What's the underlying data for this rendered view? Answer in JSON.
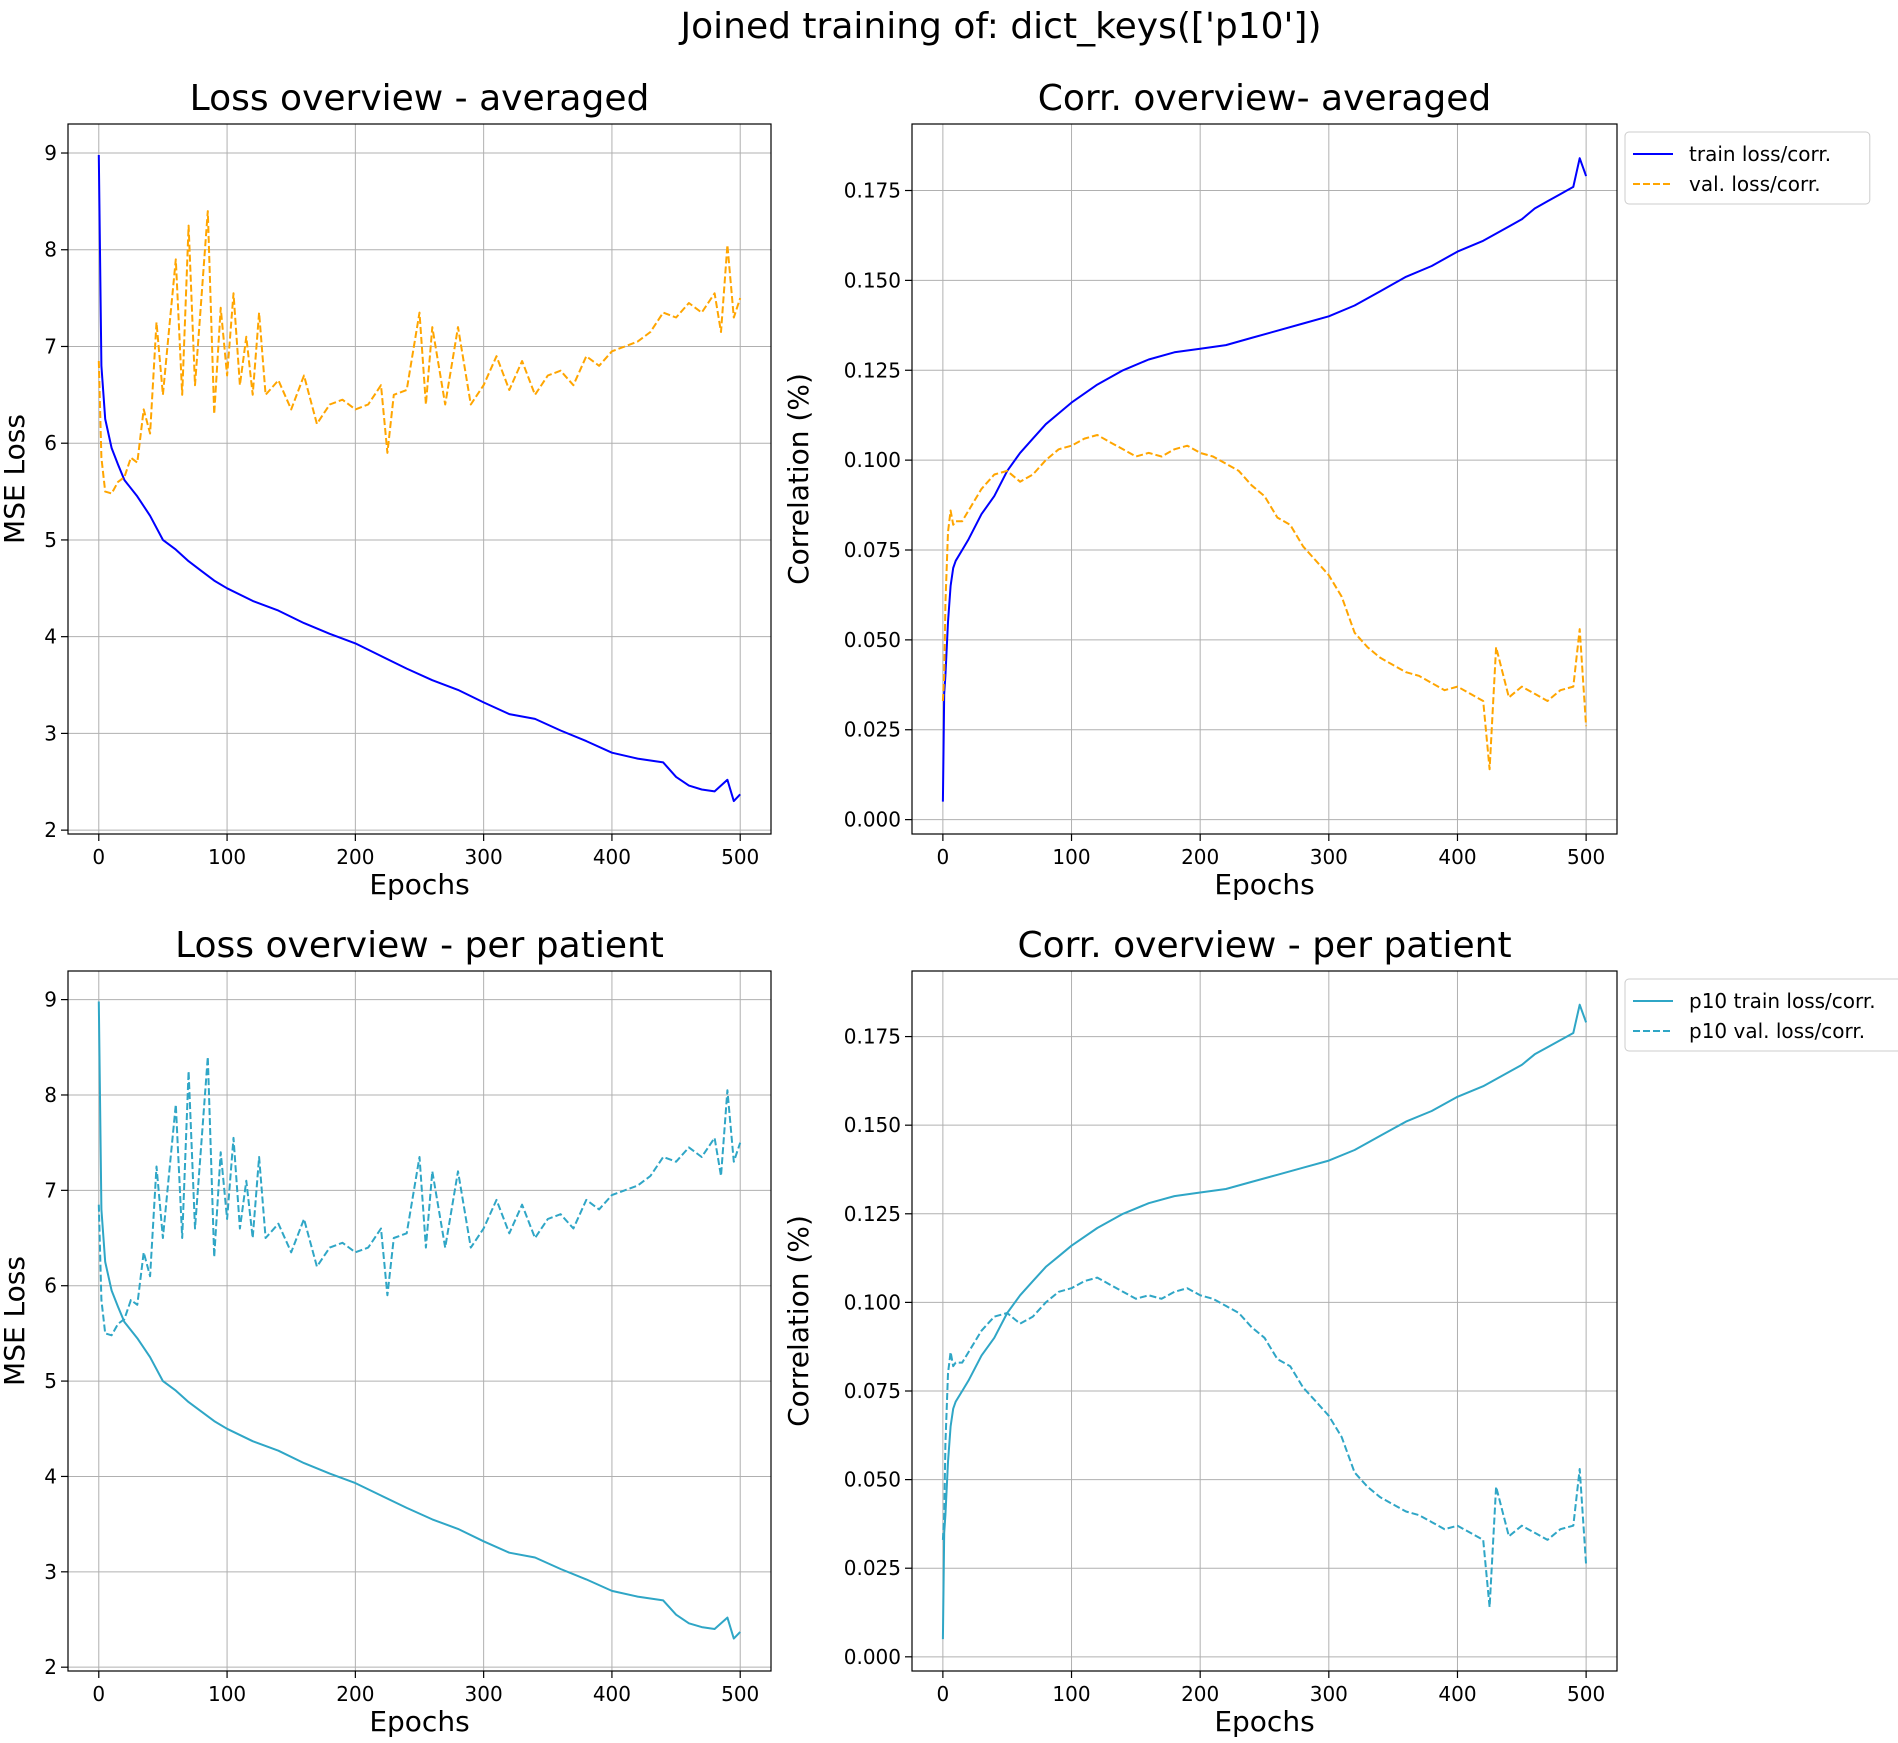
{
  "figure": {
    "suptitle": "Joined training of: dict_keys(['p10'])"
  },
  "chart_data": [
    {
      "id": "loss_avg",
      "type": "line",
      "title": "Loss overview - averaged",
      "xlabel": "Epochs",
      "ylabel": "MSE Loss",
      "xlim": [
        -24,
        524
      ],
      "ylim": [
        1.96,
        9.3
      ],
      "xticks": [
        0,
        100,
        200,
        300,
        400,
        500
      ],
      "yticks": [
        2,
        3,
        4,
        5,
        6,
        7,
        8,
        9
      ],
      "ytick_decimals": 0,
      "grid": true,
      "legend": null,
      "series": [
        {
          "role": "train",
          "color": "#0000ff",
          "style": "solid",
          "x": [
            0,
            2,
            5,
            10,
            15,
            20,
            30,
            40,
            50,
            60,
            70,
            80,
            90,
            100,
            120,
            140,
            160,
            180,
            200,
            220,
            240,
            260,
            280,
            300,
            320,
            340,
            360,
            380,
            400,
            420,
            440,
            450,
            460,
            470,
            480,
            490,
            495,
            500
          ],
          "y": [
            8.98,
            6.8,
            6.25,
            5.95,
            5.78,
            5.62,
            5.45,
            5.25,
            5.0,
            4.9,
            4.78,
            4.68,
            4.58,
            4.5,
            4.37,
            4.27,
            4.14,
            4.03,
            3.93,
            3.8,
            3.67,
            3.55,
            3.45,
            3.32,
            3.2,
            3.15,
            3.03,
            2.92,
            2.8,
            2.74,
            2.7,
            2.55,
            2.46,
            2.42,
            2.4,
            2.52,
            2.3,
            2.37
          ]
        },
        {
          "role": "val",
          "color": "#ffa500",
          "style": "dashed",
          "x": [
            0,
            2,
            5,
            10,
            15,
            20,
            25,
            30,
            35,
            40,
            45,
            50,
            55,
            60,
            65,
            70,
            75,
            80,
            85,
            90,
            95,
            100,
            105,
            110,
            115,
            120,
            125,
            130,
            140,
            150,
            160,
            170,
            180,
            190,
            200,
            210,
            220,
            225,
            230,
            240,
            250,
            255,
            260,
            270,
            280,
            290,
            300,
            310,
            320,
            330,
            340,
            350,
            360,
            370,
            380,
            390,
            400,
            410,
            420,
            430,
            440,
            450,
            460,
            470,
            480,
            485,
            490,
            495,
            500
          ],
          "y": [
            6.85,
            5.85,
            5.5,
            5.48,
            5.6,
            5.65,
            5.85,
            5.8,
            6.35,
            6.1,
            7.25,
            6.5,
            7.2,
            7.9,
            6.5,
            8.25,
            6.6,
            7.5,
            8.4,
            6.3,
            7.4,
            6.7,
            7.55,
            6.6,
            7.1,
            6.5,
            7.35,
            6.5,
            6.65,
            6.35,
            6.7,
            6.2,
            6.4,
            6.45,
            6.35,
            6.4,
            6.6,
            5.9,
            6.5,
            6.55,
            7.35,
            6.4,
            7.2,
            6.4,
            7.2,
            6.4,
            6.6,
            6.9,
            6.55,
            6.85,
            6.5,
            6.7,
            6.75,
            6.6,
            6.9,
            6.8,
            6.95,
            7.0,
            7.05,
            7.15,
            7.35,
            7.3,
            7.45,
            7.35,
            7.55,
            7.15,
            8.05,
            7.3,
            7.5
          ]
        }
      ]
    },
    {
      "id": "corr_avg",
      "type": "line",
      "title": "Corr. overview- averaged",
      "xlabel": "Epochs",
      "ylabel": "Correlation (%)",
      "xlim": [
        -24,
        524
      ],
      "ylim": [
        -0.004,
        0.1935
      ],
      "xticks": [
        0,
        100,
        200,
        300,
        400,
        500
      ],
      "yticks": [
        0.0,
        0.025,
        0.05,
        0.075,
        0.1,
        0.125,
        0.15,
        0.175
      ],
      "ytick_decimals": 3,
      "grid": true,
      "legend": {
        "placement": "outside upper right",
        "entries": [
          "train loss/corr.",
          "val. loss/corr."
        ]
      },
      "series": [
        {
          "role": "train",
          "color": "#0000ff",
          "style": "solid",
          "name": "train loss/corr.",
          "x": [
            0,
            1,
            2,
            4,
            6,
            8,
            10,
            15,
            20,
            30,
            40,
            50,
            60,
            70,
            80,
            90,
            100,
            120,
            140,
            160,
            180,
            200,
            220,
            240,
            260,
            280,
            300,
            320,
            340,
            360,
            380,
            400,
            420,
            440,
            450,
            460,
            470,
            480,
            485,
            490,
            495,
            500
          ],
          "y": [
            0.005,
            0.035,
            0.04,
            0.055,
            0.065,
            0.07,
            0.072,
            0.075,
            0.078,
            0.085,
            0.09,
            0.097,
            0.102,
            0.106,
            0.11,
            0.113,
            0.116,
            0.121,
            0.125,
            0.128,
            0.13,
            0.131,
            0.132,
            0.134,
            0.136,
            0.138,
            0.14,
            0.143,
            0.147,
            0.151,
            0.154,
            0.158,
            0.161,
            0.165,
            0.167,
            0.17,
            0.172,
            0.174,
            0.175,
            0.176,
            0.184,
            0.179
          ]
        },
        {
          "role": "val",
          "color": "#ffa500",
          "style": "dashed",
          "name": "val. loss/corr.",
          "x": [
            0,
            1,
            2,
            4,
            6,
            8,
            10,
            15,
            20,
            30,
            40,
            50,
            60,
            70,
            80,
            90,
            100,
            110,
            120,
            130,
            140,
            150,
            160,
            170,
            180,
            190,
            200,
            210,
            220,
            230,
            240,
            250,
            260,
            270,
            280,
            290,
            300,
            310,
            320,
            330,
            340,
            350,
            360,
            370,
            380,
            390,
            400,
            410,
            420,
            425,
            430,
            440,
            450,
            460,
            470,
            480,
            490,
            495,
            500
          ],
          "y": [
            0.033,
            0.04,
            0.06,
            0.08,
            0.086,
            0.082,
            0.083,
            0.083,
            0.086,
            0.092,
            0.096,
            0.097,
            0.094,
            0.096,
            0.1,
            0.103,
            0.104,
            0.106,
            0.107,
            0.105,
            0.103,
            0.101,
            0.102,
            0.101,
            0.103,
            0.104,
            0.102,
            0.101,
            0.099,
            0.097,
            0.093,
            0.09,
            0.084,
            0.082,
            0.076,
            0.072,
            0.068,
            0.062,
            0.052,
            0.048,
            0.045,
            0.043,
            0.041,
            0.04,
            0.038,
            0.036,
            0.037,
            0.035,
            0.033,
            0.014,
            0.048,
            0.034,
            0.037,
            0.035,
            0.033,
            0.036,
            0.037,
            0.053,
            0.026
          ]
        }
      ]
    },
    {
      "id": "loss_pat",
      "type": "line",
      "title": "Loss overview - per patient",
      "xlabel": "Epochs",
      "ylabel": "MSE Loss",
      "xlim": [
        -24,
        524
      ],
      "ylim": [
        1.96,
        9.3
      ],
      "xticks": [
        0,
        100,
        200,
        300,
        400,
        500
      ],
      "yticks": [
        2,
        3,
        4,
        5,
        6,
        7,
        8,
        9
      ],
      "ytick_decimals": 0,
      "grid": true,
      "legend": null,
      "series": [
        {
          "role": "train",
          "color": "#2fa6c6",
          "style": "solid",
          "x": [
            0,
            2,
            5,
            10,
            15,
            20,
            30,
            40,
            50,
            60,
            70,
            80,
            90,
            100,
            120,
            140,
            160,
            180,
            200,
            220,
            240,
            260,
            280,
            300,
            320,
            340,
            360,
            380,
            400,
            420,
            440,
            450,
            460,
            470,
            480,
            490,
            495,
            500
          ],
          "y": [
            8.98,
            6.8,
            6.25,
            5.95,
            5.78,
            5.62,
            5.45,
            5.25,
            5.0,
            4.9,
            4.78,
            4.68,
            4.58,
            4.5,
            4.37,
            4.27,
            4.14,
            4.03,
            3.93,
            3.8,
            3.67,
            3.55,
            3.45,
            3.32,
            3.2,
            3.15,
            3.03,
            2.92,
            2.8,
            2.74,
            2.7,
            2.55,
            2.46,
            2.42,
            2.4,
            2.52,
            2.3,
            2.37
          ]
        },
        {
          "role": "val",
          "color": "#2fa6c6",
          "style": "dashed",
          "x": [
            0,
            2,
            5,
            10,
            15,
            20,
            25,
            30,
            35,
            40,
            45,
            50,
            55,
            60,
            65,
            70,
            75,
            80,
            85,
            90,
            95,
            100,
            105,
            110,
            115,
            120,
            125,
            130,
            140,
            150,
            160,
            170,
            180,
            190,
            200,
            210,
            220,
            225,
            230,
            240,
            250,
            255,
            260,
            270,
            280,
            290,
            300,
            310,
            320,
            330,
            340,
            350,
            360,
            370,
            380,
            390,
            400,
            410,
            420,
            430,
            440,
            450,
            460,
            470,
            480,
            485,
            490,
            495,
            500
          ],
          "y": [
            6.85,
            5.85,
            5.5,
            5.48,
            5.6,
            5.65,
            5.85,
            5.8,
            6.35,
            6.1,
            7.25,
            6.5,
            7.2,
            7.9,
            6.5,
            8.25,
            6.6,
            7.5,
            8.4,
            6.3,
            7.4,
            6.7,
            7.55,
            6.6,
            7.1,
            6.5,
            7.35,
            6.5,
            6.65,
            6.35,
            6.7,
            6.2,
            6.4,
            6.45,
            6.35,
            6.4,
            6.6,
            5.9,
            6.5,
            6.55,
            7.35,
            6.4,
            7.2,
            6.4,
            7.2,
            6.4,
            6.6,
            6.9,
            6.55,
            6.85,
            6.5,
            6.7,
            6.75,
            6.6,
            6.9,
            6.8,
            6.95,
            7.0,
            7.05,
            7.15,
            7.35,
            7.3,
            7.45,
            7.35,
            7.55,
            7.15,
            8.05,
            7.3,
            7.5
          ]
        }
      ]
    },
    {
      "id": "corr_pat",
      "type": "line",
      "title": "Corr. overview - per patient",
      "xlabel": "Epochs",
      "ylabel": "Correlation (%)",
      "xlim": [
        -24,
        524
      ],
      "ylim": [
        -0.004,
        0.1935
      ],
      "xticks": [
        0,
        100,
        200,
        300,
        400,
        500
      ],
      "yticks": [
        0.0,
        0.025,
        0.05,
        0.075,
        0.1,
        0.125,
        0.15,
        0.175
      ],
      "ytick_decimals": 3,
      "grid": true,
      "legend": {
        "placement": "outside upper right",
        "entries": [
          "p10 train loss/corr.",
          "p10 val. loss/corr."
        ]
      },
      "series": [
        {
          "role": "train",
          "color": "#2fa6c6",
          "style": "solid",
          "name": "p10 train loss/corr.",
          "x": [
            0,
            1,
            2,
            4,
            6,
            8,
            10,
            15,
            20,
            30,
            40,
            50,
            60,
            70,
            80,
            90,
            100,
            120,
            140,
            160,
            180,
            200,
            220,
            240,
            260,
            280,
            300,
            320,
            340,
            360,
            380,
            400,
            420,
            440,
            450,
            460,
            470,
            480,
            485,
            490,
            495,
            500
          ],
          "y": [
            0.005,
            0.035,
            0.04,
            0.055,
            0.065,
            0.07,
            0.072,
            0.075,
            0.078,
            0.085,
            0.09,
            0.097,
            0.102,
            0.106,
            0.11,
            0.113,
            0.116,
            0.121,
            0.125,
            0.128,
            0.13,
            0.131,
            0.132,
            0.134,
            0.136,
            0.138,
            0.14,
            0.143,
            0.147,
            0.151,
            0.154,
            0.158,
            0.161,
            0.165,
            0.167,
            0.17,
            0.172,
            0.174,
            0.175,
            0.176,
            0.184,
            0.179
          ]
        },
        {
          "role": "val",
          "color": "#2fa6c6",
          "style": "dashed",
          "name": "p10 val. loss/corr.",
          "x": [
            0,
            1,
            2,
            4,
            6,
            8,
            10,
            15,
            20,
            30,
            40,
            50,
            60,
            70,
            80,
            90,
            100,
            110,
            120,
            130,
            140,
            150,
            160,
            170,
            180,
            190,
            200,
            210,
            220,
            230,
            240,
            250,
            260,
            270,
            280,
            290,
            300,
            310,
            320,
            330,
            340,
            350,
            360,
            370,
            380,
            390,
            400,
            410,
            420,
            425,
            430,
            440,
            450,
            460,
            470,
            480,
            490,
            495,
            500
          ],
          "y": [
            0.033,
            0.04,
            0.06,
            0.08,
            0.086,
            0.082,
            0.083,
            0.083,
            0.086,
            0.092,
            0.096,
            0.097,
            0.094,
            0.096,
            0.1,
            0.103,
            0.104,
            0.106,
            0.107,
            0.105,
            0.103,
            0.101,
            0.102,
            0.101,
            0.103,
            0.104,
            0.102,
            0.101,
            0.099,
            0.097,
            0.093,
            0.09,
            0.084,
            0.082,
            0.076,
            0.072,
            0.068,
            0.062,
            0.052,
            0.048,
            0.045,
            0.043,
            0.041,
            0.04,
            0.038,
            0.036,
            0.037,
            0.035,
            0.033,
            0.014,
            0.048,
            0.034,
            0.037,
            0.035,
            0.033,
            0.036,
            0.037,
            0.053,
            0.026
          ]
        }
      ]
    }
  ]
}
